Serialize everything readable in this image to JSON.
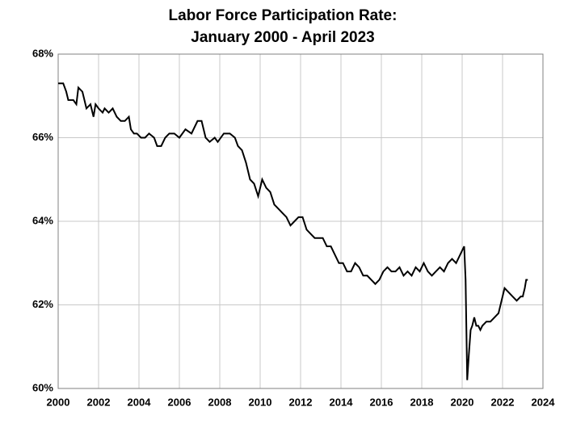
{
  "chart_data": {
    "type": "line",
    "title": [
      "Labor Force Participation  Rate:",
      "January  2000 - April 2023"
    ],
    "x": [
      2000.0,
      2000.25,
      2000.4,
      2000.5,
      2000.75,
      2000.9,
      2001.0,
      2001.2,
      2001.3,
      2001.4,
      2001.6,
      2001.75,
      2001.85,
      2002.0,
      2002.2,
      2002.3,
      2002.5,
      2002.7,
      2002.9,
      2003.1,
      2003.3,
      2003.5,
      2003.6,
      2003.75,
      2003.9,
      2004.1,
      2004.3,
      2004.5,
      2004.75,
      2004.9,
      2005.1,
      2005.3,
      2005.5,
      2005.75,
      2006.0,
      2006.3,
      2006.6,
      2006.9,
      2007.1,
      2007.3,
      2007.5,
      2007.75,
      2007.9,
      2008.2,
      2008.5,
      2008.75,
      2008.9,
      2009.1,
      2009.3,
      2009.5,
      2009.7,
      2009.9,
      2010.1,
      2010.3,
      2010.5,
      2010.7,
      2010.9,
      2011.1,
      2011.3,
      2011.5,
      2011.7,
      2011.9,
      2012.1,
      2012.3,
      2012.5,
      2012.7,
      2012.9,
      2013.1,
      2013.3,
      2013.5,
      2013.7,
      2013.9,
      2014.1,
      2014.3,
      2014.5,
      2014.7,
      2014.9,
      2015.1,
      2015.3,
      2015.5,
      2015.7,
      2015.9,
      2016.1,
      2016.3,
      2016.5,
      2016.7,
      2016.9,
      2017.1,
      2017.3,
      2017.5,
      2017.7,
      2017.9,
      2018.1,
      2018.3,
      2018.5,
      2018.7,
      2018.9,
      2019.1,
      2019.3,
      2019.5,
      2019.7,
      2019.9,
      2020.0,
      2020.1,
      2020.17,
      2020.25,
      2020.33,
      2020.42,
      2020.5,
      2020.6,
      2020.7,
      2020.8,
      2020.9,
      2021.0,
      2021.2,
      2021.4,
      2021.6,
      2021.8,
      2022.0,
      2022.1,
      2022.3,
      2022.5,
      2022.7,
      2022.9,
      2023.0,
      2023.1,
      2023.17,
      2023.25
    ],
    "series": [
      {
        "color": "#000000",
        "values": [
          67.3,
          67.3,
          67.1,
          66.9,
          66.9,
          66.8,
          67.2,
          67.1,
          66.9,
          66.7,
          66.8,
          66.5,
          66.8,
          66.7,
          66.6,
          66.7,
          66.6,
          66.7,
          66.5,
          66.4,
          66.4,
          66.5,
          66.2,
          66.1,
          66.1,
          66.0,
          66.0,
          66.1,
          66.0,
          65.8,
          65.8,
          66.0,
          66.1,
          66.1,
          66.0,
          66.2,
          66.1,
          66.4,
          66.4,
          66.0,
          65.9,
          66.0,
          65.9,
          66.1,
          66.1,
          66.0,
          65.8,
          65.7,
          65.4,
          65.0,
          64.9,
          64.6,
          65.0,
          64.8,
          64.7,
          64.4,
          64.3,
          64.2,
          64.1,
          63.9,
          64.0,
          64.1,
          64.1,
          63.8,
          63.7,
          63.6,
          63.6,
          63.6,
          63.4,
          63.4,
          63.2,
          63.0,
          63.0,
          62.8,
          62.8,
          63.0,
          62.9,
          62.7,
          62.7,
          62.6,
          62.5,
          62.6,
          62.8,
          62.9,
          62.8,
          62.8,
          62.9,
          62.7,
          62.8,
          62.7,
          62.9,
          62.8,
          63.0,
          62.8,
          62.7,
          62.8,
          62.9,
          62.8,
          63.0,
          63.1,
          63.0,
          63.2,
          63.3,
          63.4,
          62.6,
          60.2,
          60.8,
          61.4,
          61.5,
          61.7,
          61.5,
          61.5,
          61.4,
          61.5,
          61.6,
          61.6,
          61.7,
          61.8,
          62.2,
          62.4,
          62.3,
          62.2,
          62.1,
          62.2,
          62.2,
          62.4,
          62.6,
          62.6
        ]
      }
    ],
    "xlim": [
      2000,
      2024
    ],
    "xticks": [
      2000,
      2002,
      2004,
      2006,
      2008,
      2010,
      2012,
      2014,
      2016,
      2018,
      2020,
      2022,
      2024
    ],
    "ylim": [
      60,
      68
    ],
    "yticks": [
      {
        "value": 60,
        "label": "60%"
      },
      {
        "value": 62,
        "label": "62%"
      },
      {
        "value": 64,
        "label": "64%"
      },
      {
        "value": 66,
        "label": "66%"
      },
      {
        "value": 68,
        "label": "68%"
      }
    ],
    "grid": true
  }
}
